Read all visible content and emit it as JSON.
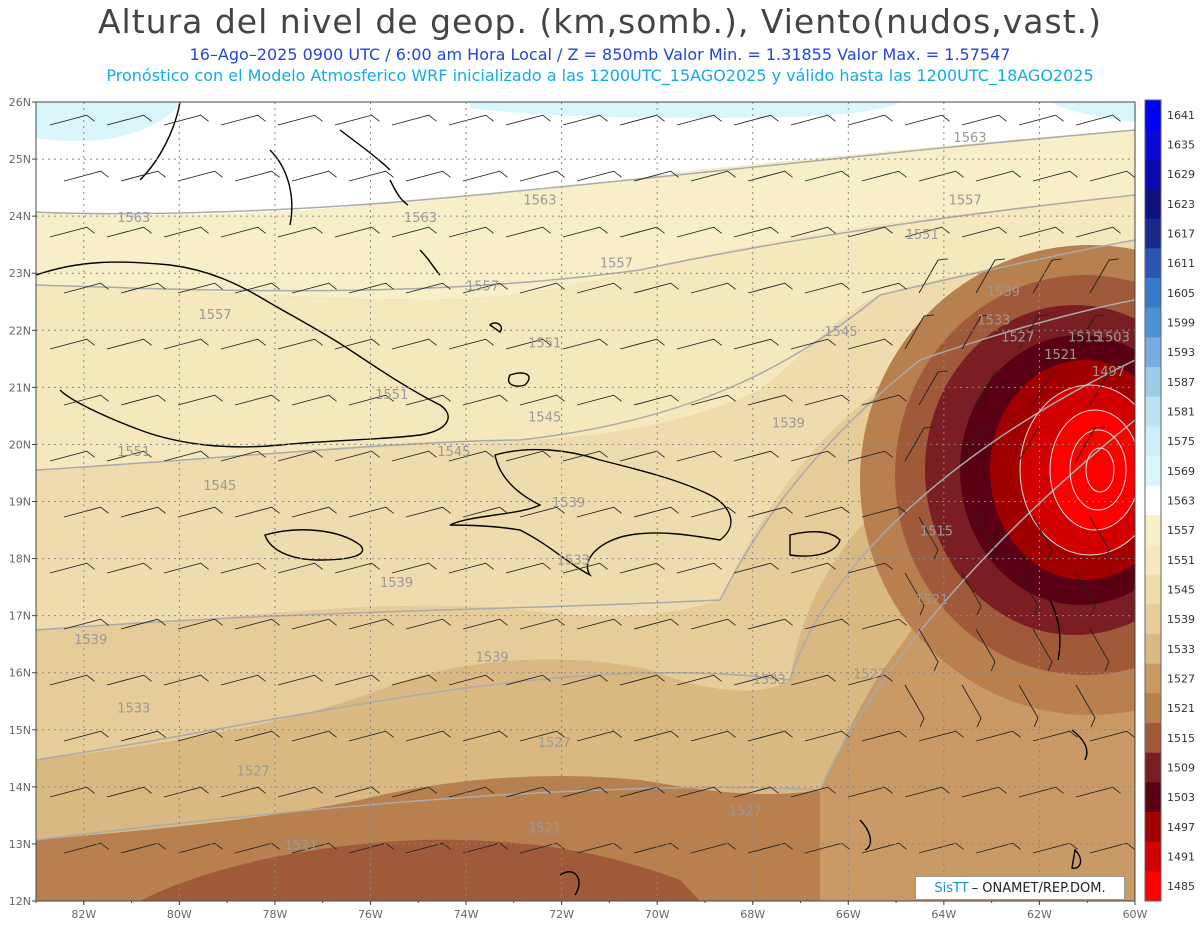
{
  "header": {
    "title": "Altura del nivel de geop. (km,somb.), Viento(nudos,vast.)",
    "subtitle1": "16–Ago–2025  0900 UTC / 6:00 am Hora Local / Z = 850mb     Valor Min. = 1.31855  Valor Max. = 1.57547",
    "subtitle2": "Pronóstico con el Modelo Atmosferico WRF inicializado a las 1200UTC_15AGO2025 y válido hasta las  1200UTC_18AGO2025"
  },
  "axes": {
    "lat_labels": [
      "26N",
      "25N",
      "24N",
      "23N",
      "22N",
      "21N",
      "20N",
      "19N",
      "18N",
      "17N",
      "16N",
      "15N",
      "14N",
      "13N",
      "12N"
    ],
    "lon_labels": [
      "82W",
      "80W",
      "78W",
      "76W",
      "74W",
      "72W",
      "70W",
      "68W",
      "66W",
      "64W",
      "62W",
      "60W"
    ]
  },
  "colorbar": {
    "labels": [
      "1641",
      "1635",
      "1629",
      "1623",
      "1617",
      "1611",
      "1605",
      "1599",
      "1593",
      "1587",
      "1581",
      "1575",
      "1569",
      "1563",
      "1557",
      "1551",
      "1545",
      "1539",
      "1533",
      "1527",
      "1521",
      "1515",
      "1509",
      "1503",
      "1497",
      "1491",
      "1485"
    ],
    "colors": [
      "#0000ff",
      "#0a0ad8",
      "#0a0ab0",
      "#101080",
      "#1a2a8a",
      "#2a55b0",
      "#3a78c8",
      "#4e90d4",
      "#78acde",
      "#9ccbe8",
      "#bde3f2",
      "#cceff8",
      "#d8f6fb",
      "#ffffff",
      "#f8efc8",
      "#f6e8bd",
      "#efdcae",
      "#e6cc98",
      "#d9b882",
      "#c99a66",
      "#b8804e",
      "#a05a3a",
      "#7a1e24",
      "#5a0014",
      "#a00000",
      "#d20000",
      "#ff0000"
    ]
  },
  "contour_labels": [
    {
      "text": "1563",
      "lon": -81.3,
      "lat": 23.9
    },
    {
      "text": "1563",
      "lon": -75.3,
      "lat": 23.9
    },
    {
      "text": "1563",
      "lon": -72.8,
      "lat": 24.2
    },
    {
      "text": "1563",
      "lon": -63.8,
      "lat": 25.3
    },
    {
      "text": "1557",
      "lon": -63.9,
      "lat": 24.2
    },
    {
      "text": "1557",
      "lon": -79.6,
      "lat": 22.2
    },
    {
      "text": "1557",
      "lon": -74.0,
      "lat": 22.7
    },
    {
      "text": "1557",
      "lon": -71.2,
      "lat": 23.1
    },
    {
      "text": "1551",
      "lon": -64.8,
      "lat": 23.6
    },
    {
      "text": "1551",
      "lon": -72.7,
      "lat": 21.7
    },
    {
      "text": "1551",
      "lon": -75.9,
      "lat": 20.8
    },
    {
      "text": "1551",
      "lon": -81.3,
      "lat": 19.8
    },
    {
      "text": "1545",
      "lon": -79.5,
      "lat": 19.2
    },
    {
      "text": "1545",
      "lon": -72.7,
      "lat": 20.4
    },
    {
      "text": "1545",
      "lon": -74.6,
      "lat": 19.8
    },
    {
      "text": "1545",
      "lon": -66.5,
      "lat": 21.9
    },
    {
      "text": "1539",
      "lon": -63.1,
      "lat": 22.6
    },
    {
      "text": "1539",
      "lon": -67.6,
      "lat": 20.3
    },
    {
      "text": "1539",
      "lon": -75.8,
      "lat": 17.5
    },
    {
      "text": "1539",
      "lon": -72.2,
      "lat": 18.9
    },
    {
      "text": "1539",
      "lon": -82.2,
      "lat": 16.5
    },
    {
      "text": "1539",
      "lon": -73.8,
      "lat": 16.2
    },
    {
      "text": "1533",
      "lon": -63.3,
      "lat": 22.1
    },
    {
      "text": "1533",
      "lon": -72.1,
      "lat": 17.9
    },
    {
      "text": "1533",
      "lon": -68.0,
      "lat": 15.8
    },
    {
      "text": "1533",
      "lon": -81.3,
      "lat": 15.3
    },
    {
      "text": "1527",
      "lon": -62.8,
      "lat": 21.8
    },
    {
      "text": "1527",
      "lon": -65.9,
      "lat": 15.9
    },
    {
      "text": "1527",
      "lon": -72.5,
      "lat": 14.7
    },
    {
      "text": "1527",
      "lon": -78.8,
      "lat": 14.2
    },
    {
      "text": "1527",
      "lon": -68.5,
      "lat": 13.5
    },
    {
      "text": "1521",
      "lon": -61.9,
      "lat": 21.5
    },
    {
      "text": "1521",
      "lon": -64.6,
      "lat": 17.2
    },
    {
      "text": "1521",
      "lon": -72.7,
      "lat": 13.2
    },
    {
      "text": "1521",
      "lon": -77.8,
      "lat": 12.9
    },
    {
      "text": "1515",
      "lon": -61.4,
      "lat": 21.8
    },
    {
      "text": "1515",
      "lon": -64.5,
      "lat": 18.4
    },
    {
      "text": "1503",
      "lon": -60.8,
      "lat": 21.8
    },
    {
      "text": "1497",
      "lon": -60.9,
      "lat": 21.2
    }
  ],
  "footer": {
    "credit_brand": "SisTT",
    "credit_text": "– ONAMET/REP.DOM."
  }
}
